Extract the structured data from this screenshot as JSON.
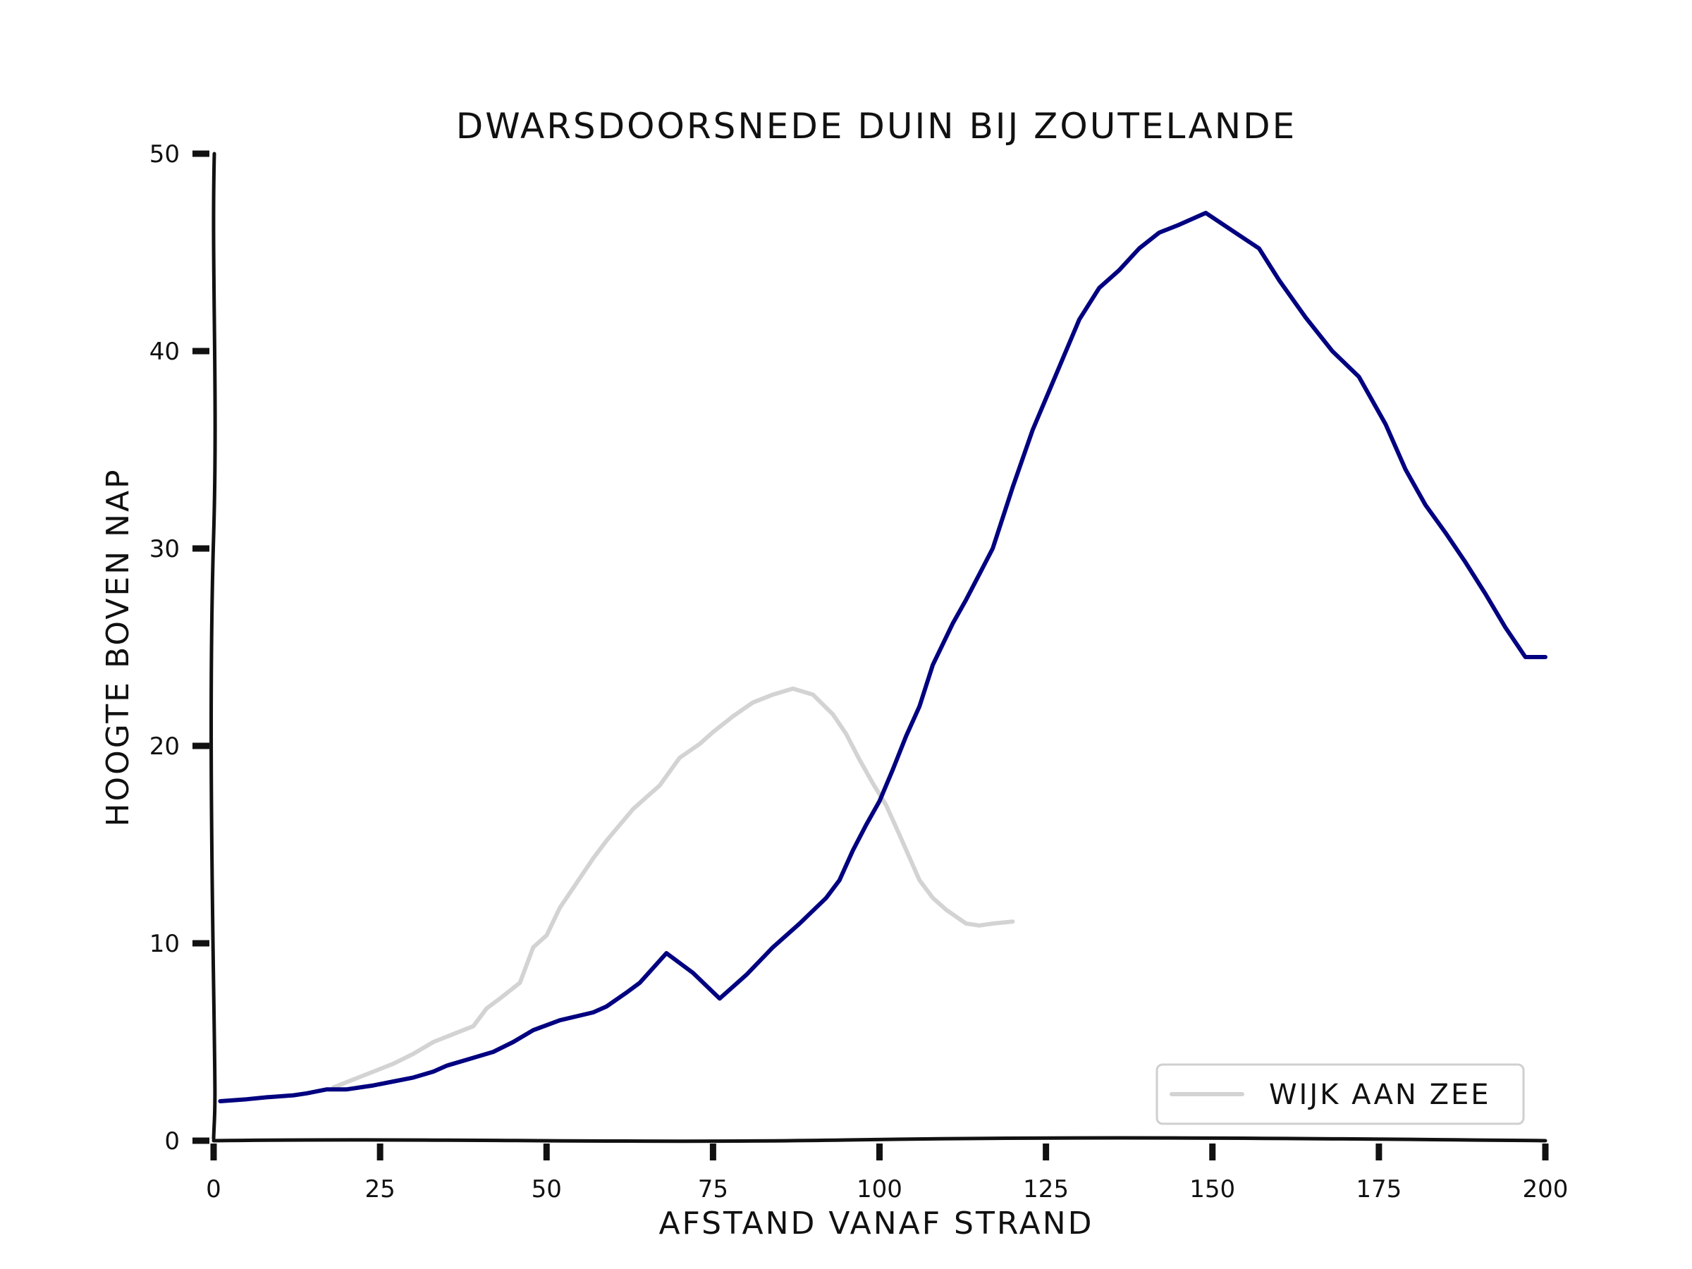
{
  "chart_data": {
    "type": "line",
    "title": "DWARSDOORSNEDE DUIN BIJ ZOUTELANDE",
    "xlabel": "AFSTAND VANAF STRAND",
    "ylabel": "HOOGTE BOVEN NAP",
    "xlim": [
      0,
      200
    ],
    "ylim": [
      0,
      50
    ],
    "xticks": [
      0,
      25,
      50,
      75,
      100,
      125,
      150,
      175,
      200
    ],
    "yticks": [
      0,
      10,
      20,
      30,
      40,
      50
    ],
    "grid": false,
    "legend": {
      "position": "bottom-right"
    },
    "series": [
      {
        "name": "",
        "color": "#000080",
        "x": [
          1,
          5,
          8,
          12,
          14,
          17,
          20,
          22,
          24,
          27,
          30,
          33,
          35,
          38,
          42,
          45,
          48,
          52,
          57,
          59,
          62,
          64,
          68,
          72,
          76,
          80,
          84,
          88,
          92,
          94,
          96,
          98,
          100,
          102,
          104,
          106,
          108,
          111,
          113,
          117,
          120,
          123,
          126,
          130,
          133,
          136,
          139,
          142,
          145,
          149,
          153,
          157,
          160,
          164,
          168,
          172,
          176,
          179,
          182,
          185,
          188,
          191,
          194,
          197,
          200
        ],
        "y": [
          2,
          2.1,
          2.2,
          2.3,
          2.4,
          2.6,
          2.6,
          2.7,
          2.8,
          3,
          3.2,
          3.5,
          3.8,
          4.1,
          4.5,
          5,
          5.6,
          6.1,
          6.5,
          6.8,
          7.5,
          8,
          9.5,
          8.5,
          7.2,
          8.4,
          9.8,
          11,
          12.3,
          13.2,
          14.7,
          16,
          17.2,
          18.8,
          20.5,
          22,
          24.1,
          26.2,
          27.4,
          30,
          33.1,
          36,
          38.4,
          41.6,
          43.2,
          44.1,
          45.2,
          46,
          46.4,
          47,
          46.1,
          45.2,
          43.6,
          41.7,
          40,
          38.7,
          36.3,
          34,
          32.2,
          30.8,
          29.3,
          27.7,
          26,
          24.5,
          24.5
        ]
      },
      {
        "name": "WIJK AAN ZEE",
        "color": "#d3d3d3",
        "x": [
          18,
          21,
          24,
          27,
          30,
          33,
          36,
          39,
          41,
          43,
          46,
          48,
          50,
          52,
          55,
          57,
          59,
          61,
          63,
          65,
          67,
          70,
          73,
          75,
          78,
          81,
          84,
          87,
          90,
          93,
          95,
          97,
          99,
          101,
          103,
          106,
          108,
          110,
          113,
          115,
          117,
          120
        ],
        "y": [
          2.7,
          3.1,
          3.5,
          3.9,
          4.4,
          5,
          5.4,
          5.8,
          6.7,
          7.2,
          8,
          9.8,
          10.4,
          11.8,
          13.3,
          14.3,
          15.2,
          16,
          16.8,
          17.4,
          18,
          19.4,
          20.1,
          20.7,
          21.5,
          22.2,
          22.6,
          22.9,
          22.6,
          21.6,
          20.6,
          19.3,
          18.1,
          17,
          15.5,
          13.2,
          12.3,
          11.7,
          11,
          10.9,
          11,
          11.1
        ]
      }
    ]
  }
}
